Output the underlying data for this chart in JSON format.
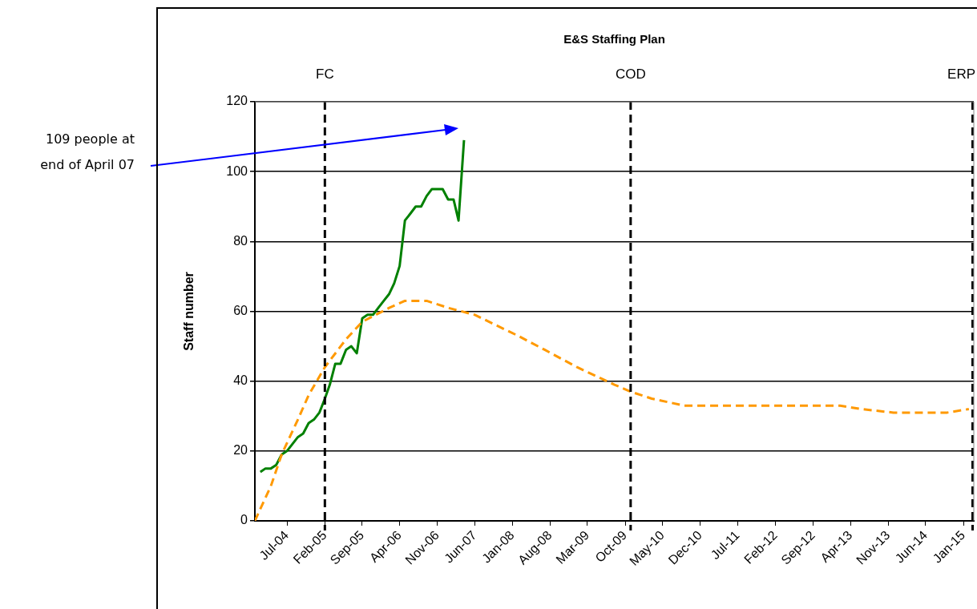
{
  "chart_data": {
    "type": "line",
    "title": "E&S Staffing Plan",
    "ylabel": "Staff number",
    "xlim": [
      "2004-01",
      "2015-03"
    ],
    "ylim": [
      0,
      120
    ],
    "yticks": [
      0,
      20,
      40,
      60,
      80,
      100,
      120
    ],
    "xticks": [
      {
        "value": "2004-07",
        "label": "Jul-04"
      },
      {
        "value": "2005-02",
        "label": "Feb-05"
      },
      {
        "value": "2005-09",
        "label": "Sep-05"
      },
      {
        "value": "2006-04",
        "label": "Apr-06"
      },
      {
        "value": "2006-11",
        "label": "Nov-06"
      },
      {
        "value": "2007-06",
        "label": "Jun-07"
      },
      {
        "value": "2008-01",
        "label": "Jan-08"
      },
      {
        "value": "2008-08",
        "label": "Aug-08"
      },
      {
        "value": "2009-03",
        "label": "Mar-09"
      },
      {
        "value": "2009-10",
        "label": "Oct-09"
      },
      {
        "value": "2010-05",
        "label": "May-10"
      },
      {
        "value": "2010-12",
        "label": "Dec-10"
      },
      {
        "value": "2011-07",
        "label": "Jul-11"
      },
      {
        "value": "2012-02",
        "label": "Feb-12"
      },
      {
        "value": "2012-09",
        "label": "Sep-12"
      },
      {
        "value": "2013-04",
        "label": "Apr-13"
      },
      {
        "value": "2013-11",
        "label": "Nov-13"
      },
      {
        "value": "2014-06",
        "label": "Jun-14"
      },
      {
        "value": "2015-01",
        "label": "Jan-15"
      }
    ],
    "grid": "y",
    "series": [
      {
        "color": "#ff9900",
        "line_style": "dashed",
        "x": [
          "2004-01",
          "2004-04",
          "2004-06",
          "2004-09",
          "2004-11",
          "2005-02",
          "2005-06",
          "2005-09",
          "2006-02",
          "2006-05",
          "2006-09",
          "2007-01",
          "2007-06",
          "2007-10",
          "2008-02",
          "2008-07",
          "2009-01",
          "2009-08",
          "2009-11",
          "2010-03",
          "2010-09",
          "2013-02",
          "2013-06",
          "2013-12",
          "2014-07",
          "2014-10",
          "2015-02"
        ],
        "values": [
          0,
          10,
          19,
          29,
          36,
          44,
          52,
          57,
          61,
          63,
          63,
          61,
          59,
          56,
          53,
          49,
          44,
          39,
          37,
          35,
          33,
          33,
          32,
          31,
          31,
          31,
          32
        ]
      },
      {
        "color": "#008000",
        "line_style": "solid",
        "x": [
          "2004-02",
          "2004-03",
          "2004-04",
          "2004-05",
          "2004-06",
          "2004-07",
          "2004-08",
          "2004-09",
          "2004-10",
          "2004-11",
          "2004-12",
          "2005-01",
          "2005-02",
          "2005-03",
          "2005-04",
          "2005-05",
          "2005-06",
          "2005-07",
          "2005-08",
          "2005-09",
          "2005-10",
          "2005-11",
          "2005-12",
          "2006-01",
          "2006-02",
          "2006-03",
          "2006-04",
          "2006-05",
          "2006-06",
          "2006-07",
          "2006-08",
          "2006-09",
          "2006-10",
          "2006-11",
          "2006-12",
          "2007-01",
          "2007-02",
          "2007-03",
          "2007-04"
        ],
        "values": [
          14,
          15,
          15,
          16,
          19,
          20,
          22,
          24,
          25,
          28,
          29,
          31,
          35,
          39,
          45,
          45,
          49,
          50,
          48,
          58,
          59,
          59,
          61,
          63,
          65,
          68,
          73,
          86,
          88,
          90,
          90,
          93,
          95,
          95,
          95,
          92,
          92,
          86,
          109
        ]
      }
    ],
    "ref_lines": [
      {
        "axis": "x",
        "value": "2005-02",
        "label": "FC",
        "color": "#000000",
        "line_style": "dashed"
      },
      {
        "axis": "x",
        "value": "2009-11",
        "label": "COD",
        "color": "#000000",
        "line_style": "dashed"
      },
      {
        "axis": "x",
        "value": "2015-03",
        "label": "ERP",
        "color": "#000000",
        "line_style": "dashed"
      }
    ],
    "annotations": [
      "109 people at end of April 07"
    ]
  }
}
